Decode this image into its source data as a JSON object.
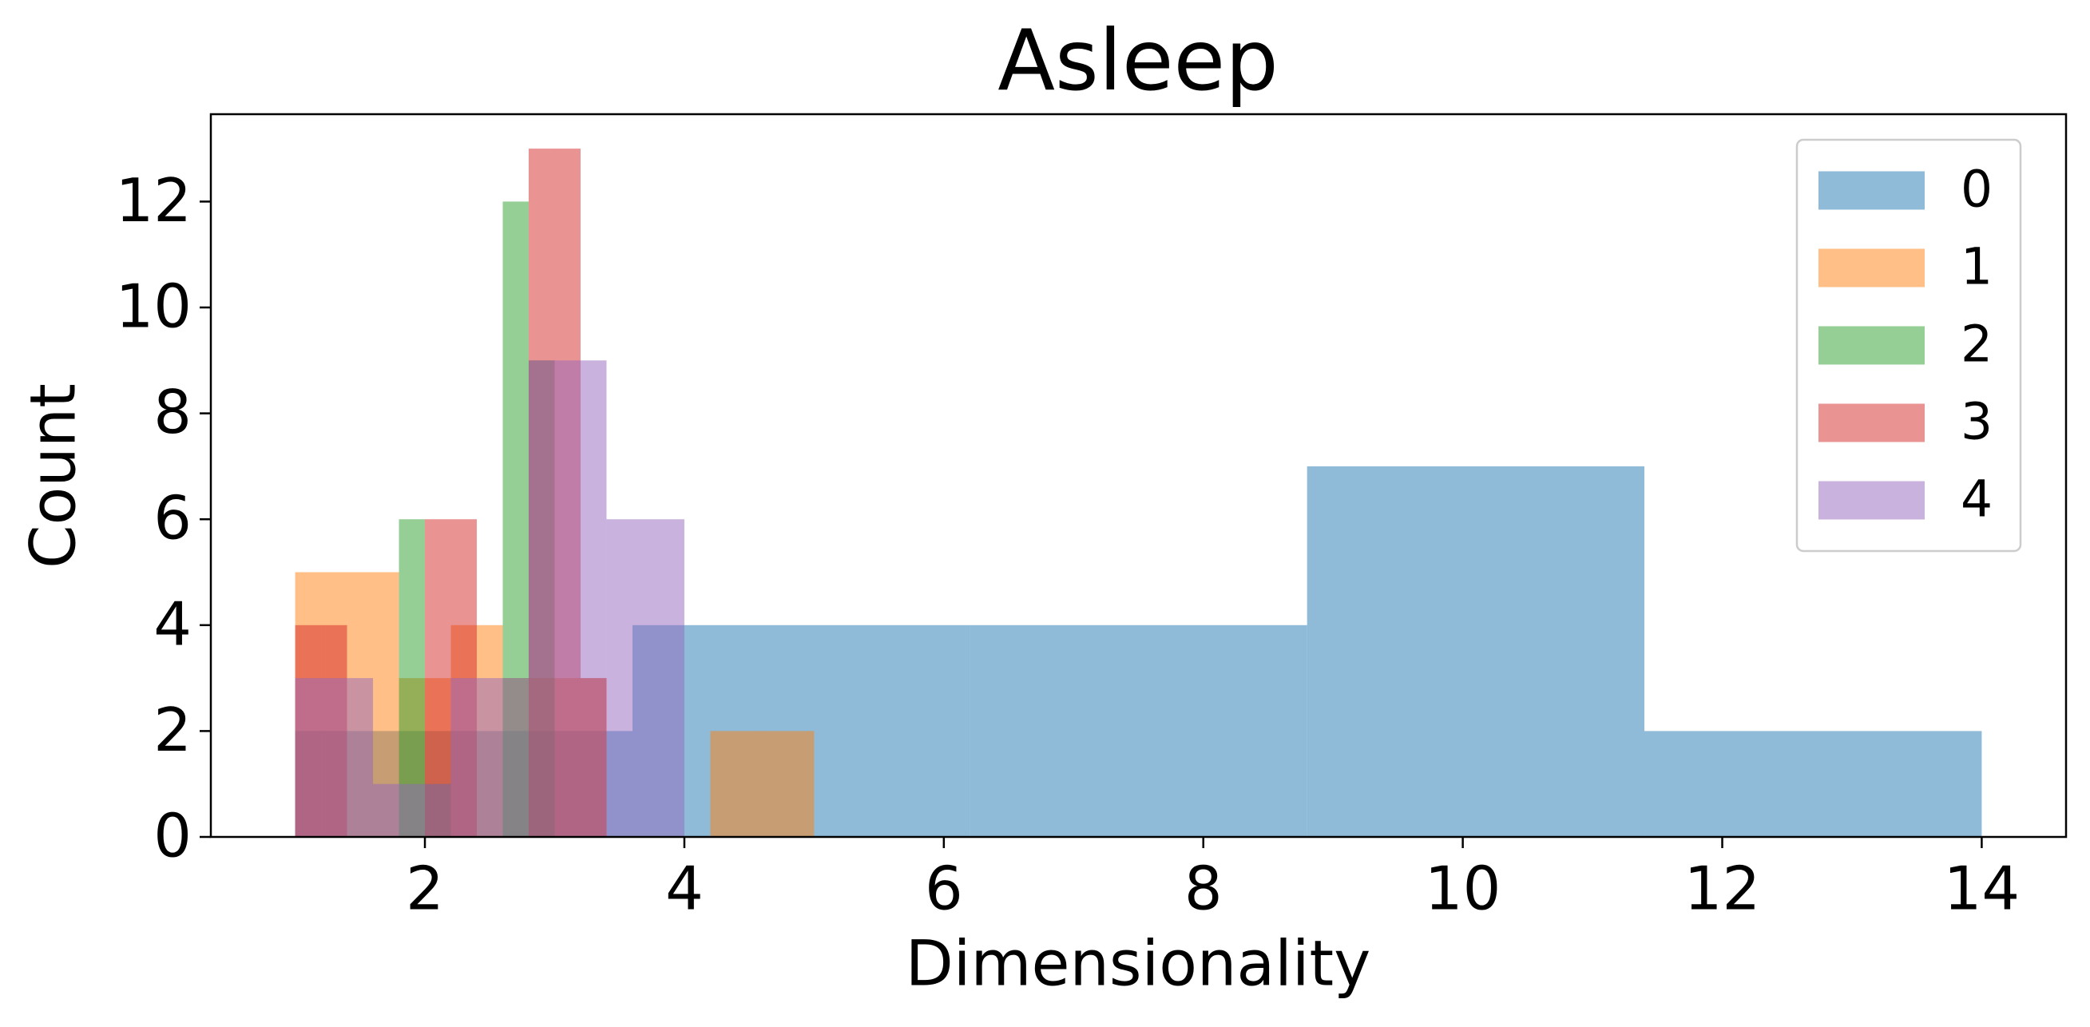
{
  "chart_data": {
    "type": "histogram",
    "title": "Asleep",
    "x_label": "Dimensionality",
    "y_label": "Count",
    "xlim": [
      0.35,
      14.65
    ],
    "ylim": [
      0,
      13.65
    ],
    "xticks": [
      2,
      4,
      6,
      8,
      10,
      12,
      14
    ],
    "yticks": [
      0,
      2,
      4,
      6,
      8,
      10,
      12
    ],
    "grid": false,
    "legend": "upper right",
    "opacity": 0.5,
    "series": [
      {
        "name": "0",
        "color": "#1f77b4",
        "bins": [
          1,
          3.6,
          6.2,
          8.8,
          11.4,
          14
        ],
        "values": [
          2,
          4,
          4,
          7,
          2
        ]
      },
      {
        "name": "1",
        "color": "#ff7f0e",
        "bins": [
          1,
          1.4,
          1.8,
          2.2,
          2.6,
          3.0,
          3.4,
          3.8,
          4.2,
          4.6,
          5.0
        ],
        "values": [
          5,
          5,
          3,
          4,
          3,
          3,
          0,
          0,
          2,
          2
        ]
      },
      {
        "name": "2",
        "color": "#2ca02c",
        "bins": [
          1,
          1.2,
          1.4,
          1.6,
          1.8,
          2.0,
          2.2,
          2.4,
          2.6,
          2.8,
          3.0
        ],
        "values": [
          0,
          0,
          0,
          0,
          6,
          1,
          0,
          0,
          12,
          9
        ]
      },
      {
        "name": "3",
        "color": "#d62728",
        "bins": [
          1,
          1.2,
          1.4,
          1.6,
          1.8,
          2.0,
          2.2,
          2.4,
          2.6,
          2.8,
          3.0,
          3.2,
          3.4
        ],
        "values": [
          4,
          4,
          0,
          0,
          0,
          6,
          6,
          0,
          0,
          13,
          13,
          3
        ]
      },
      {
        "name": "4",
        "color": "#9467bd",
        "bins": [
          1,
          1.6,
          2.2,
          2.8,
          3.4,
          4.0
        ],
        "values": [
          3,
          1,
          3,
          9,
          6
        ]
      }
    ]
  }
}
